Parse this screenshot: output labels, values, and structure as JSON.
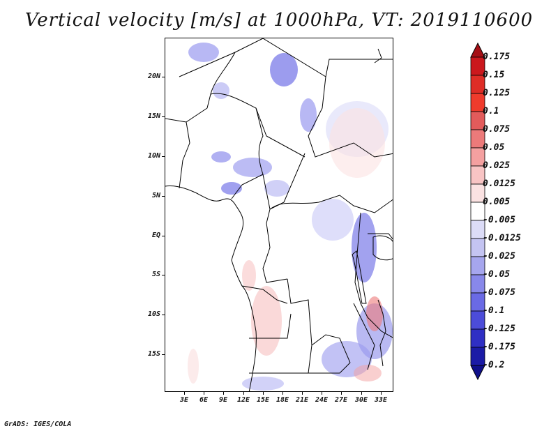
{
  "title": "Vertical velocity [m/s] at 1000hPa, VT: 2019110600",
  "credit": "GrADS: IGES/COLA",
  "map": {
    "lat_labels": [
      "20N",
      "15N",
      "10N",
      "5N",
      "EQ",
      "5S",
      "10S",
      "15S"
    ],
    "lon_labels": [
      "3E",
      "6E",
      "9E",
      "12E",
      "15E",
      "18E",
      "21E",
      "24E",
      "27E",
      "30E",
      "33E"
    ],
    "lat_range": [
      -19.5,
      24.5
    ],
    "lon_range": [
      0,
      35
    ],
    "colors": {
      "rising": "#6666ff",
      "sinking": "#ff8080",
      "coast": "#000000"
    }
  },
  "colorbar": {
    "levels": [
      "0.175",
      "0.15",
      "0.125",
      "0.1",
      "0.075",
      "0.05",
      "0.025",
      "0.0125",
      "0.005",
      "-0.005",
      "-0.0125",
      "-0.025",
      "-0.05",
      "-0.075",
      "-0.1",
      "-0.125",
      "-0.175",
      "-0.2"
    ],
    "colors": [
      "#a50f15",
      "#cb181d",
      "#de2d26",
      "#ef3b2c",
      "#e25b5b",
      "#ec7a7a",
      "#f4a0a0",
      "#f8c4c4",
      "#fbe2e2",
      "#ffffff",
      "#dcdcf7",
      "#c4c4f2",
      "#a6a6ee",
      "#8888ea",
      "#6a6ae5",
      "#4c4cd9",
      "#2f2fc4",
      "#1b1ba6",
      "#10108a"
    ]
  }
}
